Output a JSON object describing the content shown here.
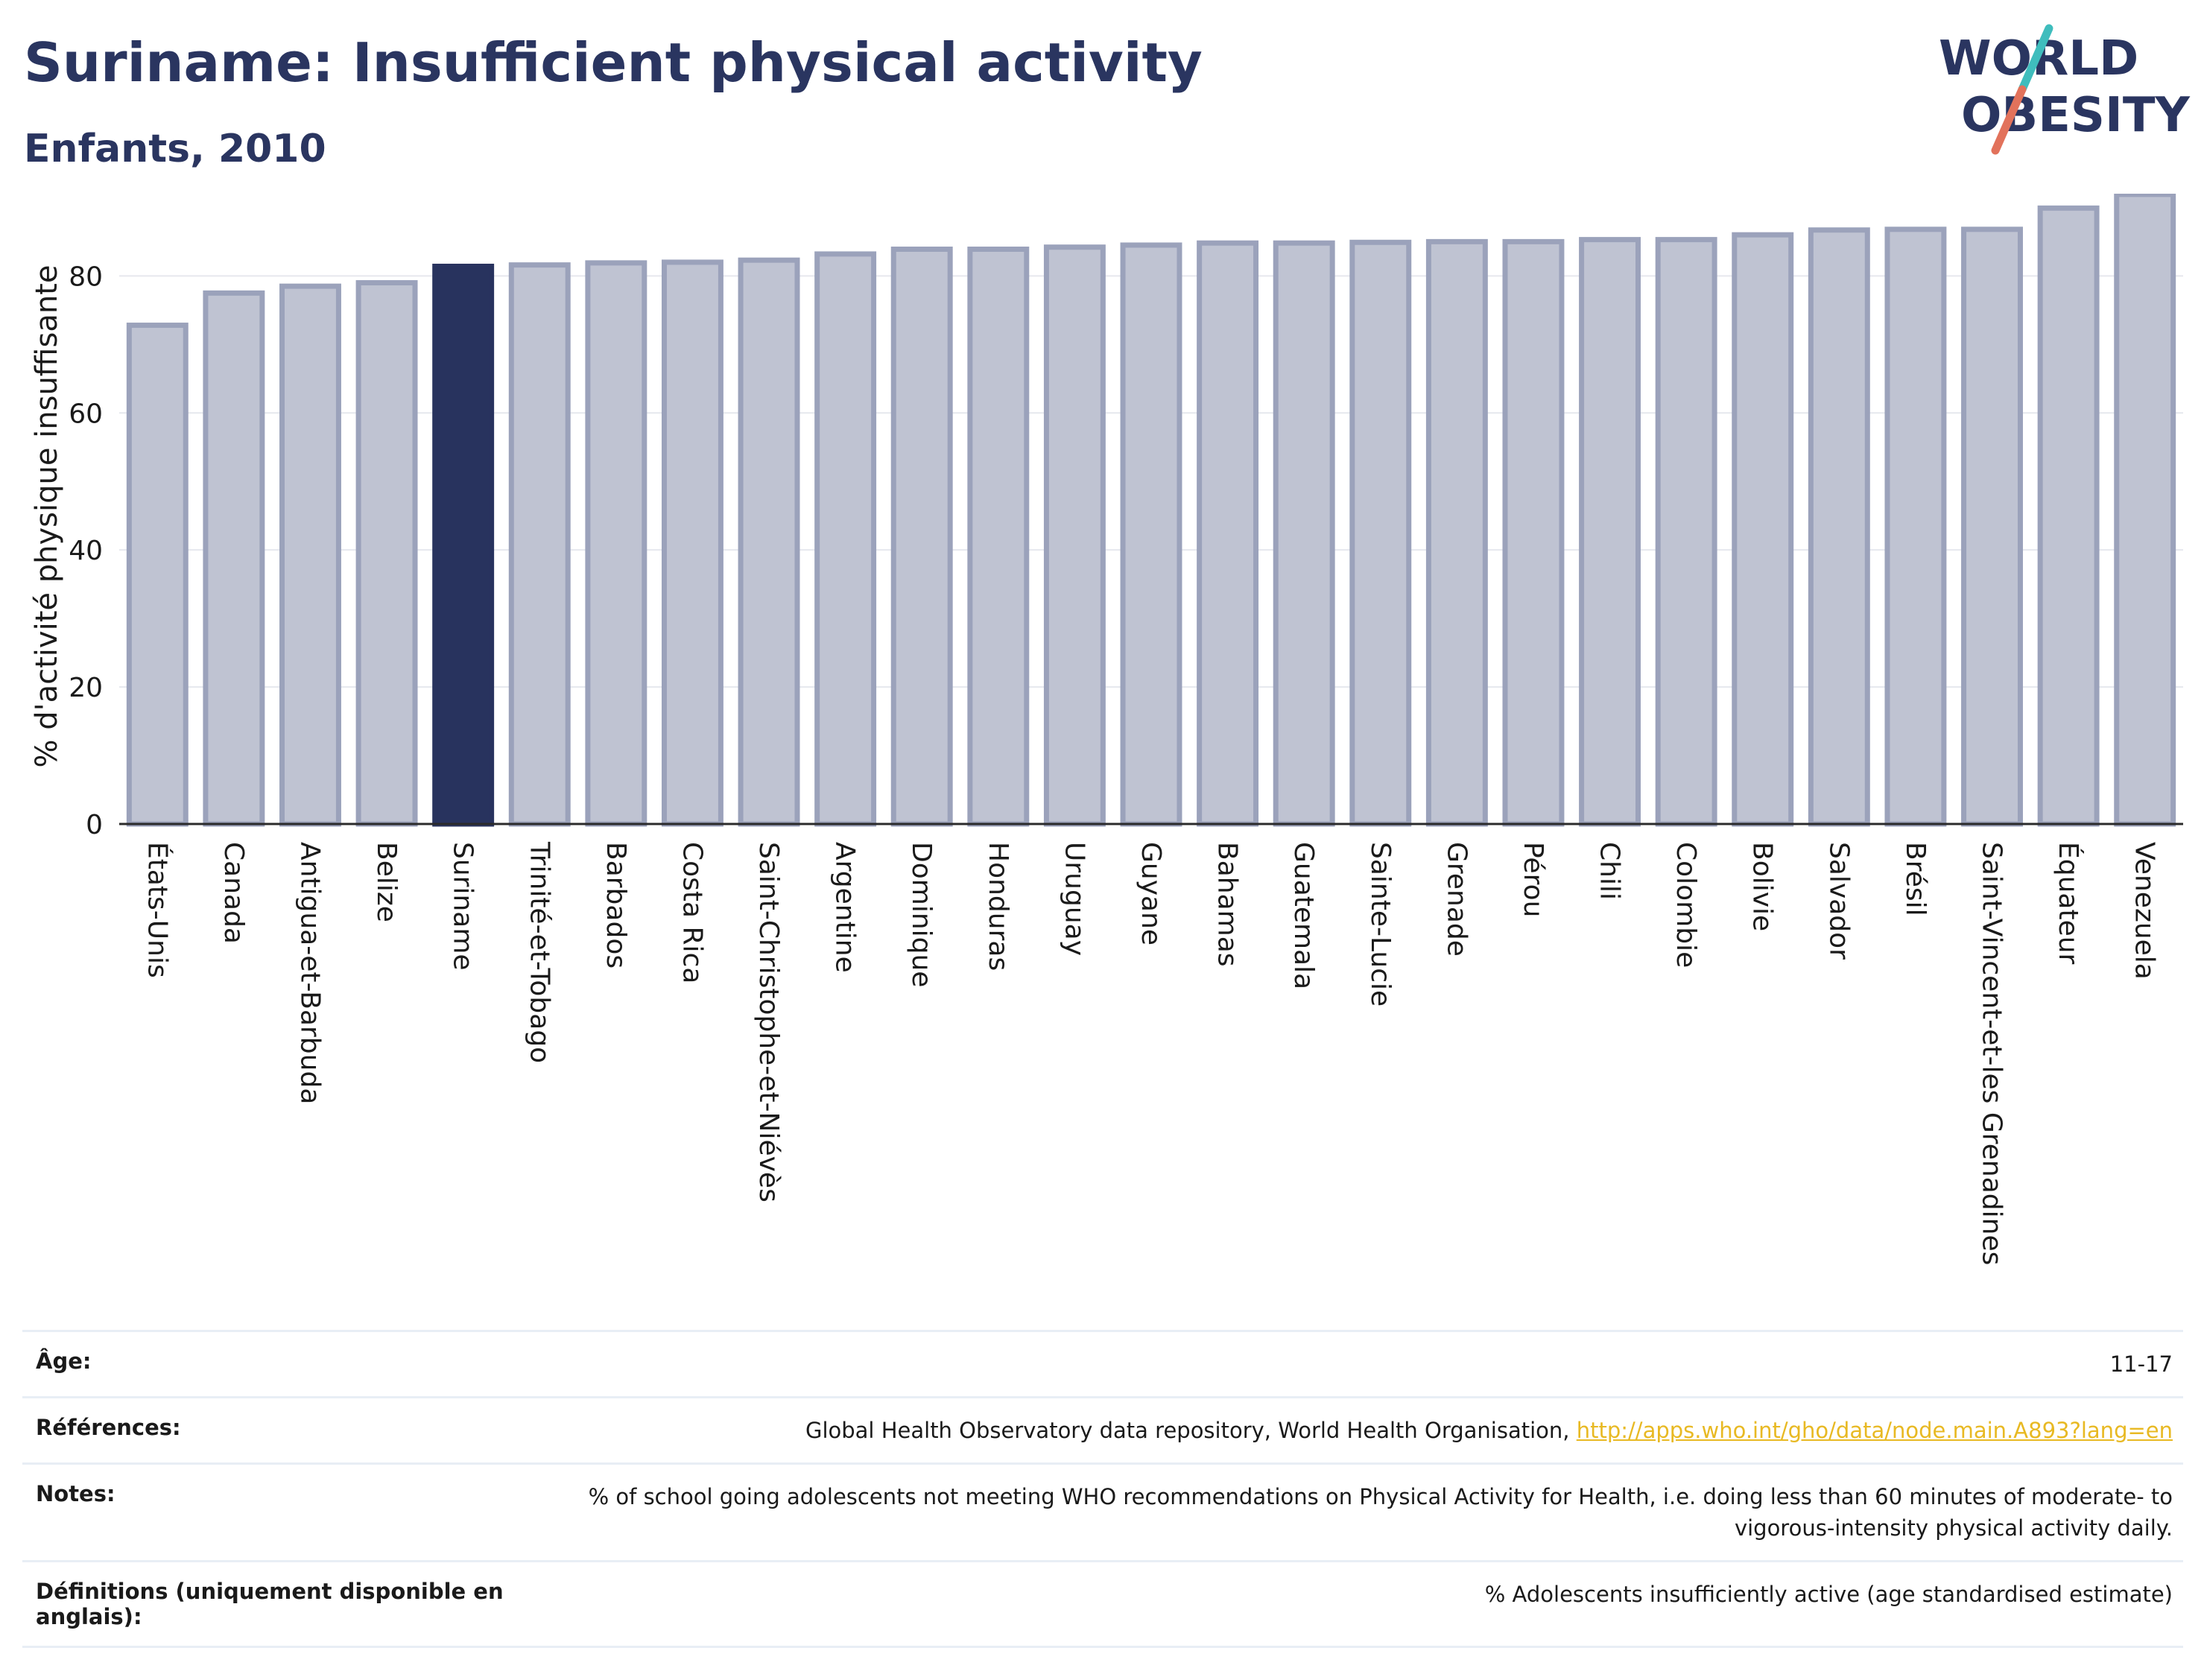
{
  "header": {
    "title": "Suriname: Insufficient physical activity",
    "subtitle": "Enfants, 2010"
  },
  "logo": {
    "line1": "WORLD",
    "line2": "OBESITY"
  },
  "colors": {
    "highlight": "#28335e",
    "bar_fill": "#bfc3d2",
    "bar_stroke": "#9ba2bb",
    "title": "#2a3560",
    "link": "#e8b923"
  },
  "chart_data": {
    "type": "bar",
    "ylabel": "% d'activité physique insuffisante",
    "ylim": [
      0,
      92
    ],
    "yticks": [
      0,
      20,
      40,
      60,
      80
    ],
    "grid": true,
    "highlight": "Suriname",
    "categories": [
      "États-Unis",
      "Canada",
      "Antigua-et-Barbuda",
      "Belize",
      "Suriname",
      "Trinité-et-Tobago",
      "Barbados",
      "Costa Rica",
      "Saint-Christophe-et-Niévès",
      "Argentine",
      "Dominique",
      "Honduras",
      "Uruguay",
      "Guyane",
      "Bahamas",
      "Guatemala",
      "Sainte-Lucie",
      "Grenade",
      "Pérou",
      "Chili",
      "Colombie",
      "Bolivie",
      "Salvador",
      "Brésil",
      "Saint-Vincent-et-les Grenadines",
      "Équateur",
      "Venezuela"
    ],
    "values": [
      72.8,
      77.5,
      78.5,
      79.0,
      81.4,
      81.6,
      81.9,
      82.0,
      82.3,
      83.2,
      83.9,
      83.9,
      84.2,
      84.5,
      84.8,
      84.8,
      84.9,
      85.0,
      85.0,
      85.3,
      85.3,
      86.0,
      86.7,
      86.8,
      86.8,
      89.9,
      91.9
    ]
  },
  "meta": [
    {
      "key": "Âge:",
      "value": "11-17"
    },
    {
      "key": "Références:",
      "value": "Global Health Observatory data repository, World Health Organisation, ",
      "link": "http://apps.who.int/gho/data/node.main.A893?lang=en"
    },
    {
      "key": "Notes:",
      "value": "% of school going adolescents not meeting WHO recommendations on Physical Activity for Health, i.e. doing less than 60 minutes of moderate- to vigorous-intensity physical activity daily."
    },
    {
      "key": "Définitions (uniquement disponible en anglais):",
      "value": "% Adolescents insufficiently active (age standardised estimate)"
    }
  ]
}
